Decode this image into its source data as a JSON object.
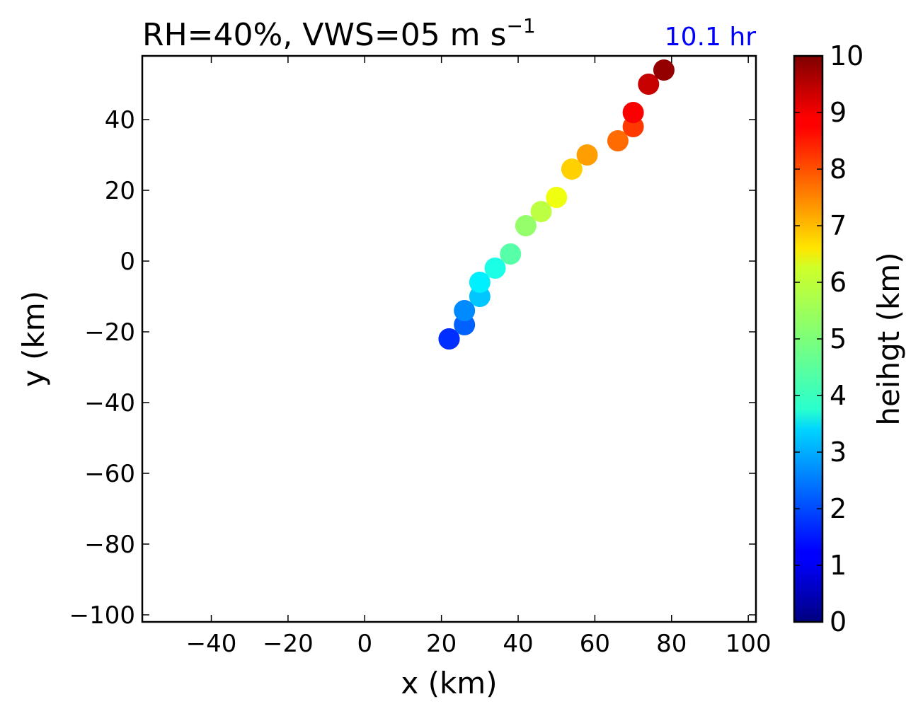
{
  "chart_data": {
    "type": "scatter",
    "title": "RH=40%, VWS=05 m s",
    "title_superscript": "−1",
    "time_label": "10.1 hr",
    "time_label_color": "#0000ff",
    "xlabel": "x (km)",
    "ylabel": "y (km)",
    "xlim": [
      -58,
      102
    ],
    "ylim": [
      -102,
      58
    ],
    "xticks": [
      -40,
      -20,
      0,
      20,
      40,
      60,
      80,
      100
    ],
    "yticks": [
      -100,
      -80,
      -60,
      -40,
      -20,
      0,
      20,
      40
    ],
    "grid": false,
    "colorbar": {
      "label": "heihgt (km)",
      "colormap": "jet",
      "range": [
        0,
        10
      ],
      "ticks": [
        0,
        1,
        2,
        3,
        4,
        5,
        6,
        7,
        8,
        9,
        10
      ]
    },
    "points": [
      {
        "x": 22,
        "y": -22,
        "height": 1.5
      },
      {
        "x": 22,
        "y": -22,
        "height": 1.7
      },
      {
        "x": 26,
        "y": -18,
        "height": 2.2
      },
      {
        "x": 26,
        "y": -14,
        "height": 2.6
      },
      {
        "x": 30,
        "y": -10,
        "height": 3.2
      },
      {
        "x": 30,
        "y": -6,
        "height": 3.6
      },
      {
        "x": 34,
        "y": -2,
        "height": 4.0
      },
      {
        "x": 38,
        "y": 2,
        "height": 4.6
      },
      {
        "x": 42,
        "y": 10,
        "height": 5.2
      },
      {
        "x": 46,
        "y": 14,
        "height": 5.6
      },
      {
        "x": 50,
        "y": 18,
        "height": 6.1
      },
      {
        "x": 54,
        "y": 26,
        "height": 6.7
      },
      {
        "x": 58,
        "y": 30,
        "height": 7.2
      },
      {
        "x": 66,
        "y": 34,
        "height": 7.7
      },
      {
        "x": 70,
        "y": 38,
        "height": 8.2
      },
      {
        "x": 70,
        "y": 42,
        "height": 8.8
      },
      {
        "x": 74,
        "y": 50,
        "height": 9.3
      },
      {
        "x": 78,
        "y": 54,
        "height": 9.8
      }
    ]
  }
}
